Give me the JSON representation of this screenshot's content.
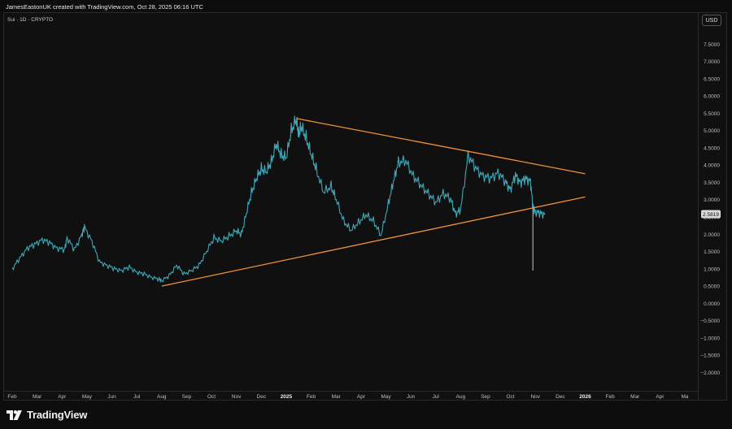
{
  "header": {
    "credit": "JamesEastonUK created with TradingView.com, Oct 28, 2025 06:16 UTC",
    "symbol": "Sui · 1D · CRYPTO",
    "currency": "USD"
  },
  "branding": {
    "name": "TradingView",
    "logo_icon": "tradingview-logo-icon"
  },
  "colors": {
    "background": "#101010",
    "price_line": "#3fa7b8",
    "trendline": "#f0913a",
    "price_label_bg": "#d9d9d9"
  },
  "chart_data": {
    "type": "line",
    "y_axis": {
      "ticks": [
        7.5,
        7.0,
        6.5,
        6.0,
        5.5,
        5.0,
        4.5,
        4.0,
        3.5,
        3.0,
        2.5,
        2.0,
        1.5,
        1.0,
        0.5,
        0.0,
        -0.5,
        -1.0,
        -1.5,
        -2.0
      ],
      "tick_labels": [
        "7.5000",
        "7.0000",
        "6.5000",
        "6.0000",
        "5.5000",
        "5.0000",
        "4.5000",
        "4.0000",
        "3.5000",
        "3.0000",
        "2.5000",
        "2.0000",
        "1.5000",
        "1.0000",
        "0.5000",
        "0.0000",
        "−0.5000",
        "−1.0000",
        "−1.5000",
        "−2.0000"
      ],
      "range": [
        -2.2,
        8.0
      ]
    },
    "x_axis": {
      "labels": [
        "Feb",
        "Mar",
        "Apr",
        "May",
        "Jun",
        "Jul",
        "Aug",
        "Sep",
        "Oct",
        "Nov",
        "Dec",
        "2025",
        "Feb",
        "Mar",
        "Apr",
        "May",
        "Jun",
        "Jul",
        "Aug",
        "Sep",
        "Oct",
        "Nov",
        "Dec",
        "2026",
        "Feb",
        "Mar",
        "Apr",
        "Ma"
      ],
      "bold": [
        "2025",
        "2026"
      ],
      "range": [
        0,
        27.75
      ]
    },
    "series": [
      {
        "x": [
          0,
          0.3,
          0.6,
          0.9,
          1.2,
          1.5,
          1.8,
          2.1,
          2.2,
          2.5,
          2.8,
          2.9,
          3.2,
          3.5,
          3.8,
          4.1,
          4.4,
          4.7,
          5,
          5.3,
          5.6,
          5.9,
          6.0,
          6.3,
          6.6,
          6.9,
          7.2,
          7.5,
          7.8,
          8.1,
          8.4,
          8.7,
          9.0,
          9.2,
          9.4,
          9.6,
          9.8,
          10.0,
          10.2,
          10.4,
          10.6,
          10.8,
          11.0,
          11.2,
          11.4,
          11.5,
          11.6,
          11.8,
          12.0,
          12.2,
          12.5,
          12.8,
          13.0,
          13.3,
          13.6,
          13.9,
          14.2,
          14.5,
          14.8,
          15.1,
          15.3,
          15.5,
          15.8,
          16.1,
          16.4,
          16.7,
          17.0,
          17.3,
          17.6,
          17.8,
          18.0,
          18.3,
          18.6,
          18.9,
          19.2,
          19.5,
          19.8,
          20.0,
          20.2,
          20.4,
          20.6,
          20.8,
          20.9,
          21.0,
          21.2,
          21.4
        ],
        "y": [
          1.0,
          1.3,
          1.6,
          1.7,
          1.85,
          1.75,
          1.6,
          1.55,
          1.9,
          1.55,
          2.0,
          2.2,
          1.8,
          1.2,
          1.1,
          1.0,
          0.95,
          1.05,
          0.9,
          0.85,
          0.75,
          0.7,
          0.65,
          0.8,
          1.1,
          0.85,
          0.95,
          1.1,
          1.5,
          1.9,
          1.8,
          1.95,
          2.1,
          2.0,
          2.6,
          3.2,
          3.6,
          3.9,
          3.8,
          4.1,
          4.6,
          4.3,
          4.2,
          5.0,
          5.3,
          4.9,
          5.1,
          4.8,
          4.3,
          3.9,
          3.2,
          3.4,
          3.0,
          2.4,
          2.1,
          2.35,
          2.55,
          2.4,
          1.95,
          2.9,
          3.5,
          4.1,
          4.1,
          3.7,
          3.4,
          3.2,
          2.9,
          3.2,
          3.0,
          2.6,
          2.7,
          4.3,
          3.9,
          3.7,
          3.6,
          3.8,
          3.5,
          3.3,
          3.7,
          3.5,
          3.6,
          3.55,
          2.8,
          2.65,
          2.6,
          2.58
        ]
      }
    ],
    "spikes": [
      {
        "x": 20.9,
        "high": 2.8,
        "low": 0.95
      }
    ],
    "trendlines": [
      {
        "label": "upper",
        "x": [
          11.4,
          23.0
        ],
        "y": [
          5.35,
          3.75
        ]
      },
      {
        "label": "lower",
        "x": [
          6.0,
          23.0
        ],
        "y": [
          0.5,
          3.08
        ]
      }
    ],
    "last_price": 2.5819,
    "last_price_label": "2.5819",
    "grid": false
  }
}
